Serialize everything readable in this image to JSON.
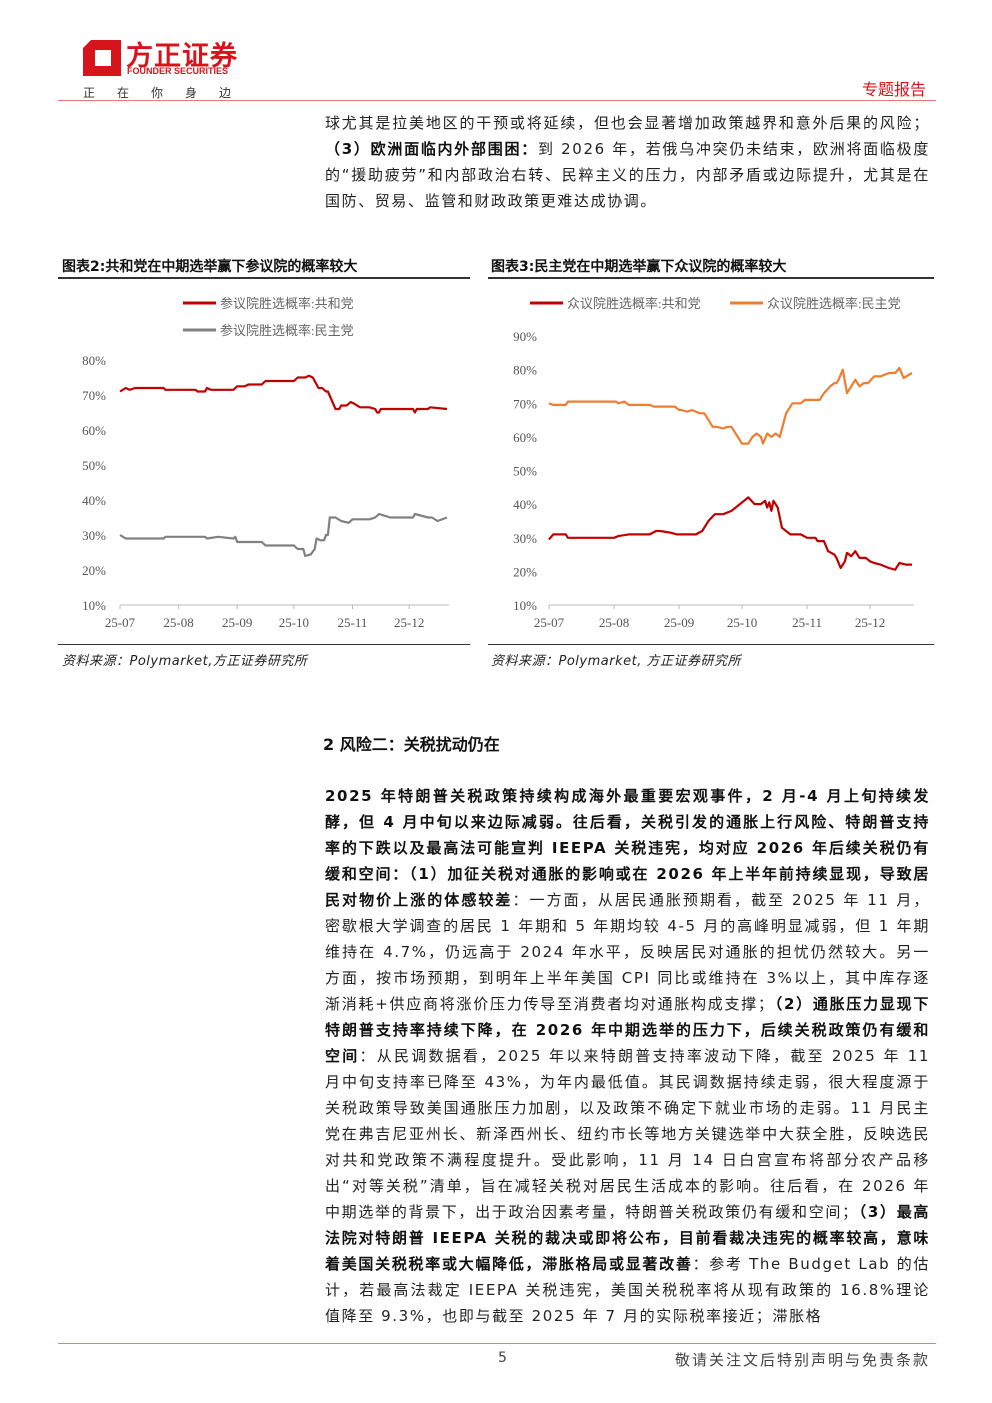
{
  "header": {
    "logo_cn": "方正证券",
    "logo_en": "FOUNDER SECURITIES",
    "slogan": "正在你身边",
    "report_type": "专题报告"
  },
  "intro_paragraph": [
    {
      "t": "球尤其是拉美地区的干预或将延续，但也会显著增加政策越界和意外后果的风险；",
      "b": false
    },
    {
      "t": "（3）欧洲面临内外部围困：",
      "b": true
    },
    {
      "t": "到 2026 年，若俄乌冲突仍未结束，欧洲将面临极度的“援助疲劳”和内部政治右转、民粹主义的压力，内部矛盾或边际提升，尤其是在国防、贸易、监管和财政政策更难达成协调。",
      "b": false
    }
  ],
  "figures": [
    {
      "title": "图表2:共和党在中期选举赢下参议院的概率较大",
      "source": "资料来源：Polymarket,方正证券研究所"
    },
    {
      "title": "图表3:民主党在中期选举赢下众议院的概率较大",
      "source": "资料来源：Polymarket, 方正证券研究所"
    }
  ],
  "chart_data": [
    {
      "type": "line",
      "title": "图表2:共和党在中期选举赢下参议院的概率较大",
      "xlabel": "",
      "ylabel": "",
      "x_unit": "days since 2025-07-01",
      "xlim": [
        0,
        173
      ],
      "ylim": [
        10,
        80
      ],
      "yticks": [
        "10%",
        "20%",
        "30%",
        "40%",
        "50%",
        "60%",
        "70%",
        "80%"
      ],
      "ytick_values": [
        10,
        20,
        30,
        40,
        50,
        60,
        70,
        80
      ],
      "xticks": [
        "25-07",
        "25-08",
        "25-09",
        "25-10",
        "25-11",
        "25-12"
      ],
      "xtick_values": [
        0,
        31,
        62,
        92,
        123,
        153
      ],
      "legend_position": "top-right",
      "series": [
        {
          "name": "参议院胜选概率:共和党",
          "color": "#c00000",
          "x": [
            0,
            3,
            5,
            8,
            23,
            24,
            40,
            41,
            45,
            46,
            48,
            60,
            62,
            66,
            68,
            75,
            77,
            92,
            94,
            98,
            100,
            102,
            105,
            107,
            109,
            110,
            114,
            116,
            117,
            120,
            122,
            124,
            127,
            132,
            135,
            136,
            137,
            138,
            145,
            155,
            156,
            157,
            163,
            164,
            173
          ],
          "y": [
            71,
            72,
            71.5,
            72,
            72,
            71.5,
            71.5,
            71,
            71,
            72,
            71.5,
            71.5,
            72.5,
            72.5,
            73,
            73,
            74,
            74,
            75,
            75,
            75.5,
            75,
            72,
            72,
            71,
            71,
            66,
            66,
            67,
            67,
            68,
            67.5,
            66.5,
            66.5,
            66,
            65,
            65,
            66,
            66,
            66,
            65,
            66,
            66,
            66.5,
            66
          ]
        },
        {
          "name": "参议院胜选概率:民主党",
          "color": "#808080",
          "x": [
            0,
            3,
            23,
            24,
            45,
            46,
            52,
            60,
            61,
            62,
            66,
            75,
            77,
            92,
            94,
            97,
            98,
            101,
            103,
            104,
            106,
            108,
            109,
            110,
            111,
            114,
            117,
            121,
            123,
            127,
            132,
            135,
            137,
            143,
            155,
            156,
            163,
            165,
            168,
            173
          ],
          "y": [
            30,
            29,
            29,
            29.5,
            29.5,
            29,
            29.5,
            29,
            29.5,
            28,
            28,
            28,
            27,
            27,
            26,
            26,
            24,
            24.5,
            26,
            29,
            28.5,
            28.5,
            30,
            30,
            35,
            35,
            34,
            33.5,
            34.5,
            34.5,
            34.5,
            35,
            36,
            35,
            35,
            36,
            35,
            35,
            34,
            35
          ]
        }
      ]
    },
    {
      "type": "line",
      "title": "图表3:民主党在中期选举赢下众议院的概率较大",
      "xlabel": "",
      "ylabel": "",
      "x_unit": "days since 2025-07-01",
      "xlim": [
        0,
        173
      ],
      "ylim": [
        10,
        90
      ],
      "yticks": [
        "10%",
        "20%",
        "30%",
        "40%",
        "50%",
        "60%",
        "70%",
        "80%",
        "90%"
      ],
      "ytick_values": [
        10,
        20,
        30,
        40,
        50,
        60,
        70,
        80,
        90
      ],
      "xticks": [
        "25-07",
        "25-08",
        "25-09",
        "25-10",
        "25-11",
        "25-12"
      ],
      "xtick_values": [
        0,
        31,
        62,
        92,
        123,
        153
      ],
      "legend_position": "top",
      "series": [
        {
          "name": "众议院胜选概率:共和党",
          "color": "#c00000",
          "x": [
            0,
            2,
            8,
            9,
            31,
            33,
            38,
            40,
            48,
            51,
            53,
            58,
            61,
            70,
            73,
            76,
            79,
            83,
            87,
            91,
            93,
            95,
            98,
            101,
            103,
            104,
            105,
            106,
            107,
            109,
            111,
            115,
            120,
            123,
            127,
            128,
            131,
            133,
            136,
            137,
            139,
            141,
            142,
            144,
            146,
            148,
            151,
            153,
            155,
            158,
            162,
            165,
            167,
            170,
            173
          ],
          "y": [
            29.5,
            31,
            31,
            30,
            30,
            30.5,
            31,
            31,
            31,
            32,
            32,
            31.5,
            31,
            31,
            32,
            35,
            37,
            37,
            38,
            40,
            41,
            42,
            40,
            40,
            41,
            39,
            40.5,
            38,
            41,
            39,
            33,
            31,
            31,
            30,
            30,
            29,
            29,
            26,
            25,
            24,
            21,
            23,
            25.5,
            24.5,
            26,
            24,
            24,
            23,
            22.5,
            22,
            21,
            20.5,
            22.5,
            22,
            22
          ]
        },
        {
          "name": "众议院胜选概率:民主党",
          "color": "#ed7d31",
          "x": [
            0,
            2,
            8,
            9,
            32,
            33,
            36,
            38,
            48,
            50,
            60,
            62,
            63,
            66,
            68,
            72,
            74,
            78,
            80,
            83,
            85,
            87,
            90,
            92,
            95,
            97,
            99,
            101,
            102,
            104,
            106,
            108,
            110,
            113,
            116,
            120,
            122,
            126,
            129,
            131,
            134,
            136,
            137,
            138,
            140,
            142,
            144,
            146,
            148,
            150,
            152,
            155,
            158,
            162,
            165,
            167,
            169,
            173
          ],
          "y": [
            70,
            69.5,
            69.5,
            70.5,
            70.5,
            70,
            70.5,
            69.5,
            69.5,
            69,
            69,
            68,
            68,
            67.5,
            68,
            67,
            67,
            63,
            63,
            62.5,
            63,
            63,
            60,
            58,
            58,
            60,
            61,
            60,
            58,
            61,
            60,
            61,
            60,
            67,
            70,
            70,
            71,
            71,
            71,
            73,
            75,
            76,
            76,
            77,
            80,
            73,
            75,
            77,
            75,
            76,
            76,
            78,
            78,
            79,
            79,
            80.5,
            77.5,
            79
          ]
        }
      ]
    }
  ],
  "section": {
    "title": "2 风险二：关税扰动仍在"
  },
  "main_paragraph": [
    {
      "t": "2025 年特朗普关税政策持续构成海外最重要宏观事件，2 月-4 月上旬持续发酵，但 4 月中旬以来边际减弱。往后看，关税引发的通胀上行风险、特朗普支持率的下跌以及最高法可能宣判 IEEPA 关税违宪，均对应 2026 年后续关税仍有缓和空间：（1）加征关税对通胀的影响或在 2026 年上半年前持续显现，导致居民对物价上涨的体感较差",
      "b": true
    },
    {
      "t": "：一方面，从居民通胀预期看，截至 2025 年 11 月，密歇根大学调查的居民 1 年期和 5 年期均较 4-5 月的高峰明显减弱，但 1 年期维持在 4.7%，仍远高于 2024 年水平，反映居民对通胀的担忧仍然较大。另一方面，按市场预期，到明年上半年美国 CPI 同比或维持在 3%以上，其中库存逐渐消耗+供应商将涨价压力传导至消费者均对通胀构成支撑；",
      "b": false
    },
    {
      "t": "（2）通胀压力显现下特朗普支持率持续下降，在 2026 年中期选举的压力下，后续关税政策仍有缓和空间",
      "b": true
    },
    {
      "t": "：从民调数据看，2025 年以来特朗普支持率波动下降，截至 2025 年 11 月中旬支持率已降至 43%，为年内最低值。其民调数据持续走弱，很大程度源于关税政策导致美国通胀压力加剧，以及政策不确定下就业市场的走弱。11 月民主党在弗吉尼亚州长、新泽西州长、纽约市长等地方关键选举中大获全胜，反映选民对共和党政策不满程度提升。受此影响，11 月 14 日白宫宣布将部分农产品移出“对等关税”清单，旨在减轻关税对居民生活成本的影响。往后看，在 2026 年中期选举的背景下，出于政治因素考量，特朗普关税政策仍有缓和空间；",
      "b": false
    },
    {
      "t": "（3）最高法院对特朗普 IEEPA 关税的裁决或即将公布，目前看裁决违宪的概率较高，意味着美国关税税率或大幅降低，滞胀格局或显著改善",
      "b": true
    },
    {
      "t": "：参考 The Budget Lab 的估计，若最高法裁定 IEEPA 关税违宪，美国关税税率将从现有政策的 16.8%理论值降至 9.3%，也即与截至 2025 年 7 月的实际税率接近；滞胀格",
      "b": false
    }
  ],
  "footer": {
    "page_number": "5",
    "disclaimer": "敬请关注文后特别声明与免责条款"
  }
}
